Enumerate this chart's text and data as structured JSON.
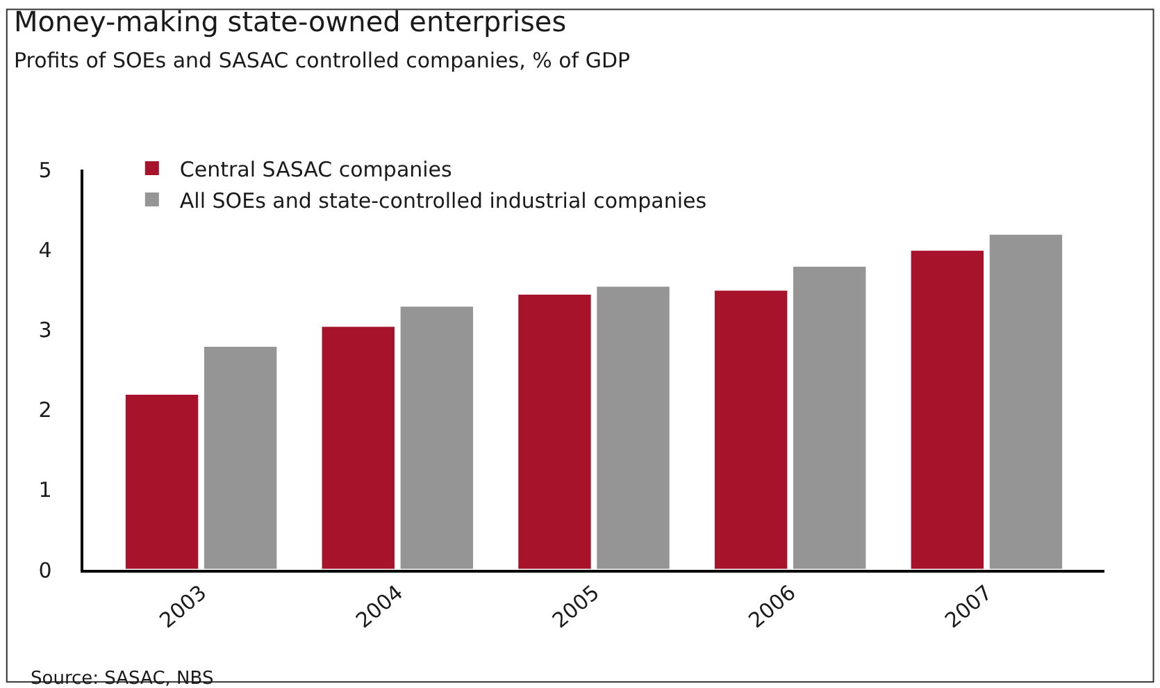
{
  "chart_data": {
    "type": "bar",
    "title": "Money-making state-owned enterprises",
    "subtitle": "Profits of SOEs and SASAC controlled companies, % of GDP",
    "categories": [
      "2003",
      "2004",
      "2005",
      "2006",
      "2007"
    ],
    "series": [
      {
        "name": "Central SASAC companies",
        "color": "#a8132c",
        "values": [
          2.2,
          3.05,
          3.45,
          3.5,
          4.0
        ]
      },
      {
        "name": "All SOEs and state-controlled industrial companies",
        "color": "#959595",
        "values": [
          2.8,
          3.3,
          3.55,
          3.8,
          4.2
        ]
      }
    ],
    "ylim": [
      0,
      5
    ],
    "yticks": [
      0,
      1,
      2,
      3,
      4,
      5
    ],
    "legend": "top left",
    "annotations": [
      "Source: SASAC, NBS"
    ]
  }
}
